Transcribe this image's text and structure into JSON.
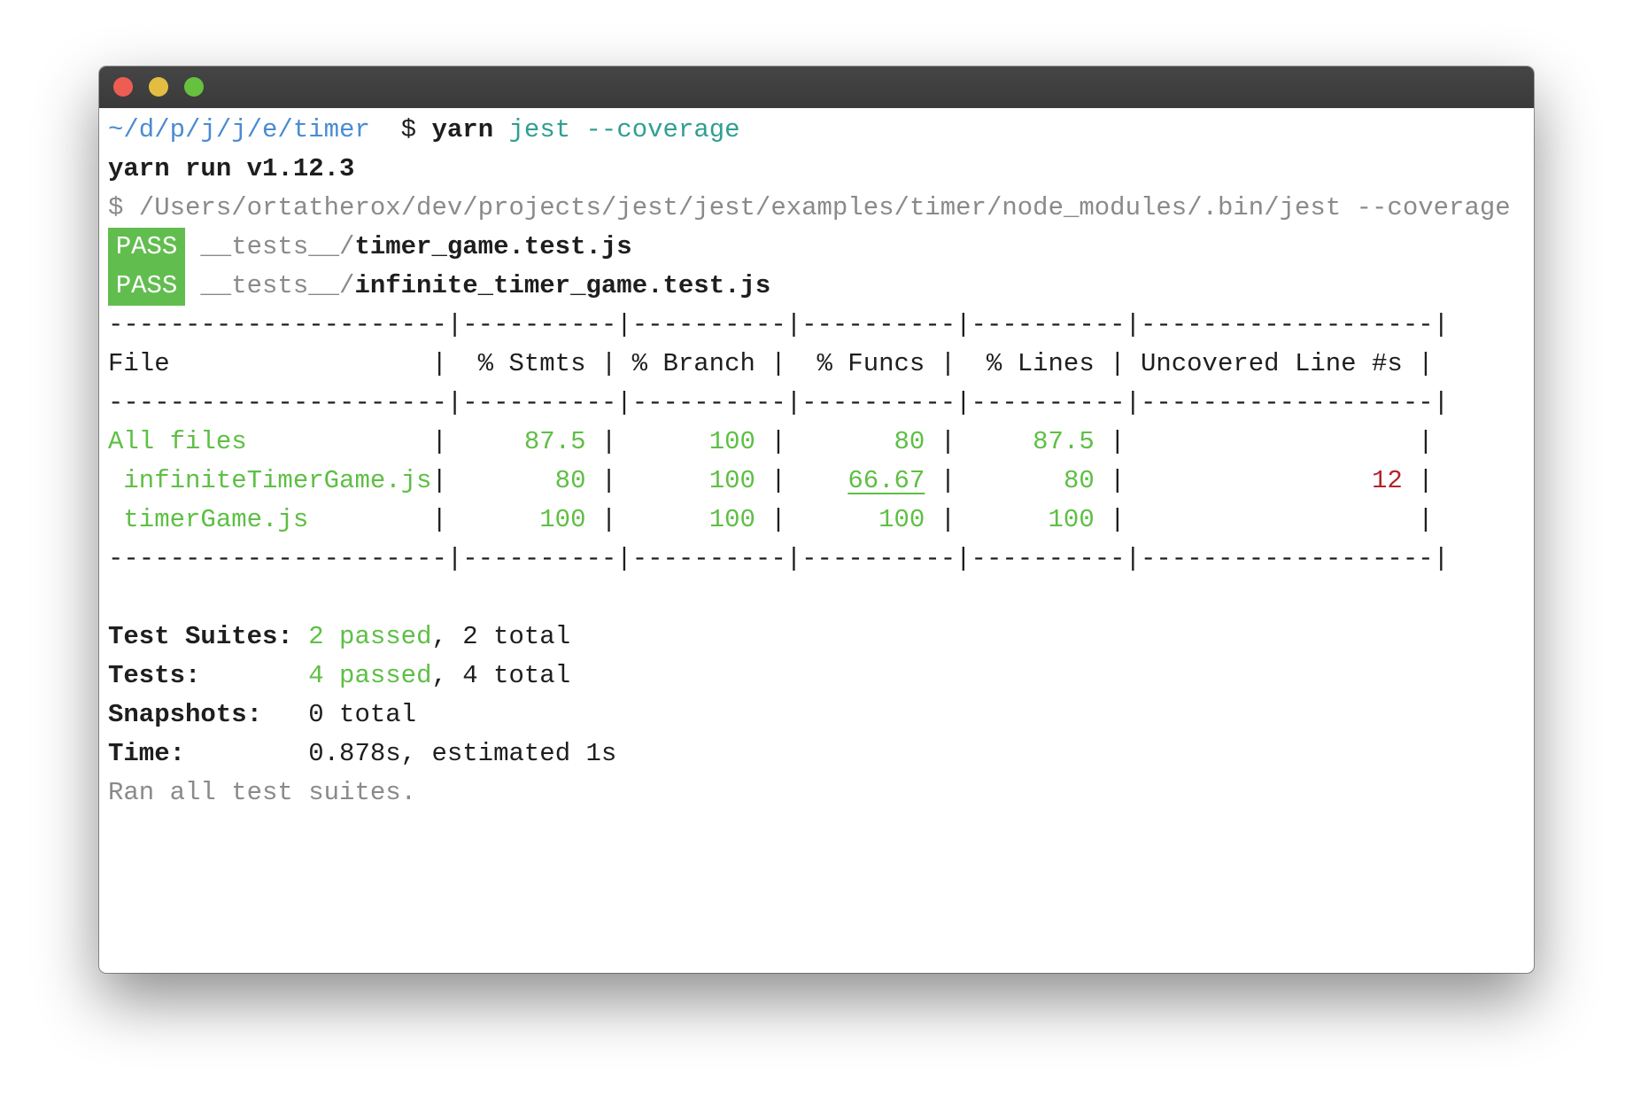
{
  "window": {
    "controls": [
      "close",
      "minimize",
      "zoom"
    ]
  },
  "prompt": {
    "path": "~/d/p/j/j/e/timer",
    "symbol": "$",
    "command": "yarn",
    "args": "jest --coverage"
  },
  "yarn_version": "yarn run v1.12.3",
  "exec_line": "$ /Users/ortatherox/dev/projects/jest/jest/examples/timer/node_modules/.bin/jest --coverage",
  "results": [
    {
      "status": "PASS",
      "dir": "__tests__/",
      "file": "timer_game.test.js"
    },
    {
      "status": "PASS",
      "dir": "__tests__/",
      "file": "infinite_timer_game.test.js"
    }
  ],
  "coverage": {
    "separator": "----------------------|----------|----------|----------|----------|-------------------|",
    "headers": [
      "File",
      "% Stmts",
      "% Branch",
      "% Funcs",
      "% Lines",
      "Uncovered Line #s"
    ],
    "rows": [
      {
        "file": "All files",
        "stmts": "87.5",
        "branch": "100",
        "funcs": "80",
        "lines": "87.5",
        "uncovered": ""
      },
      {
        "file": " infiniteTimerGame.js",
        "stmts": "80",
        "branch": "100",
        "funcs": "66.67",
        "lines": "80",
        "uncovered": "12"
      },
      {
        "file": " timerGame.js",
        "stmts": "100",
        "branch": "100",
        "funcs": "100",
        "lines": "100",
        "uncovered": ""
      }
    ]
  },
  "summary": {
    "suites_label": "Test Suites: ",
    "suites_passed": "2 passed",
    "suites_total": ", 2 total",
    "tests_label": "Tests:       ",
    "tests_passed": "4 passed",
    "tests_total": ", 4 total",
    "snapshots_label": "Snapshots:   ",
    "snapshots_value": "0 total",
    "time_label": "Time:        ",
    "time_value": "0.878s, estimated 1s",
    "footer": "Ran all test suites."
  },
  "colors": {
    "pass_bg": "#62bd4f",
    "green": "#5ebf45",
    "red": "#b3242b",
    "path_blue": "#4a8bd1",
    "teal": "#2f9f91"
  }
}
